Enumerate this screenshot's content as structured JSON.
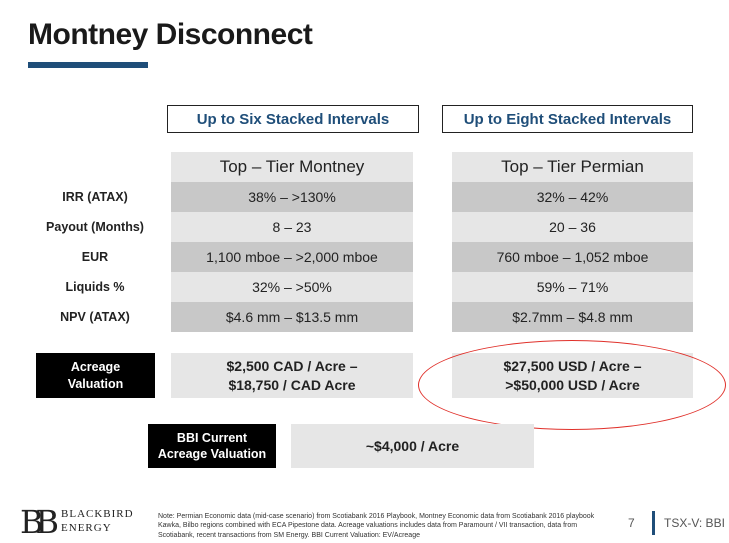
{
  "title": "Montney Disconnect",
  "headers": [
    "Up to Six Stacked Intervals",
    "Up to Eight Stacked Intervals"
  ],
  "columns": [
    "Top – Tier Montney",
    "Top – Tier Permian"
  ],
  "rows": [
    {
      "label": "IRR (ATAX)",
      "montney": "38% – >130%",
      "permian": "32% – 42%"
    },
    {
      "label": "Payout (Months)",
      "montney": "8 – 23",
      "permian": "20 – 36"
    },
    {
      "label": "EUR",
      "montney": "1,100 mboe  – >2,000 mboe",
      "permian": "760 mboe  – 1,052 mboe"
    },
    {
      "label": "Liquids %",
      "montney": "32% – >50%",
      "permian": "59% – 71%"
    },
    {
      "label": "NPV (ATAX)",
      "montney": "$4.6 mm – $13.5 mm",
      "permian": "$2.7mm – $4.8 mm"
    }
  ],
  "acreage": {
    "label_1": "Acreage",
    "label_2": "Valuation",
    "montney_1": "$2,500 CAD / Acre –",
    "montney_2": "$18,750 / CAD Acre",
    "permian_1": "$27,500 USD / Acre –",
    "permian_2": ">$50,000 USD  / Acre"
  },
  "bbi": {
    "label_1": "BBI Current",
    "label_2": "Acreage Valuation",
    "value": "~$4,000 / Acre"
  },
  "footer": {
    "logo_mark": "BB",
    "logo_line1": "BLACKBIRD",
    "logo_line2": "ENERGY",
    "note": "Note: Permian Economic data (mid-case scenario) from Scotiabank 2016 Playbook, Montney Economic data from Scotiabank 2016 playbook Kawka, Bilbo regions combined with ECA Pipestone data. Acreage valuations includes data from Paramount / VII transaction, data from Scotiabank, recent transactions from SM Energy. BBI Current Valuation: EV/Acreage",
    "page": "7",
    "ticker": "TSX-V: BBI"
  },
  "colors": {
    "accent": "#1f4e79",
    "highlight": "#e0302a"
  }
}
